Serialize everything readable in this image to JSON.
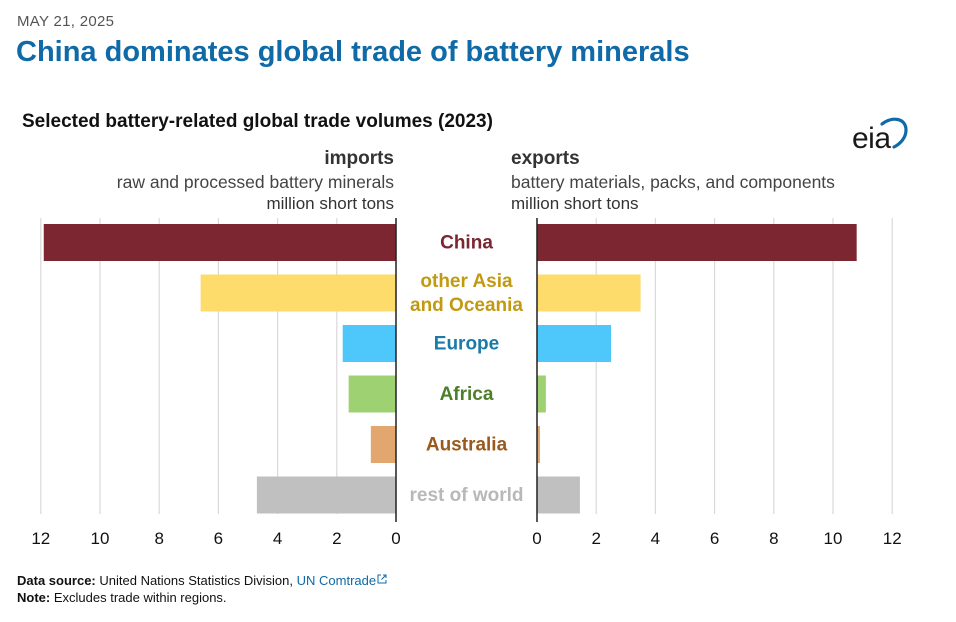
{
  "header": {
    "date": "MAY 21, 2025",
    "title": "China dominates global trade of battery minerals",
    "logo_text": "eia"
  },
  "chart_data": {
    "type": "bar",
    "title": "Selected battery-related global trade volumes (2023)",
    "categories": [
      "China",
      "other Asia and Oceania",
      "Europe",
      "Africa",
      "Australia",
      "rest of world"
    ],
    "category_colors": [
      "#7b2630",
      "#c29a12",
      "#1a7aa8",
      "#4d7e2a",
      "#9a5a1e",
      "#b8b8b8"
    ],
    "bar_colors": [
      "#7b2630",
      "#fddc6b",
      "#4ec8fb",
      "#9dd172",
      "#e2a76f",
      "#c0c0c0"
    ],
    "panels": [
      {
        "name": "imports",
        "subtitle": "raw and processed battery minerals",
        "unit": "million short tons",
        "values": [
          11.9,
          6.6,
          1.8,
          1.6,
          0.85,
          4.7
        ],
        "xlim": [
          12,
          0
        ],
        "ticks": [
          "12",
          "10",
          "8",
          "6",
          "4",
          "2",
          "0"
        ]
      },
      {
        "name": "exports",
        "subtitle": "battery materials, packs, and components",
        "unit": "million short tons",
        "values": [
          10.8,
          3.5,
          2.5,
          0.3,
          0.1,
          1.45
        ],
        "xlim": [
          0,
          12
        ],
        "ticks": [
          "0",
          "2",
          "4",
          "6",
          "8",
          "10",
          "12"
        ]
      }
    ],
    "grid": true
  },
  "footer": {
    "source_label": "Data source:",
    "source_text": "United Nations Statistics Division,",
    "source_link": "UN Comtrade",
    "note_label": "Note:",
    "note_text": "Excludes trade within regions."
  }
}
